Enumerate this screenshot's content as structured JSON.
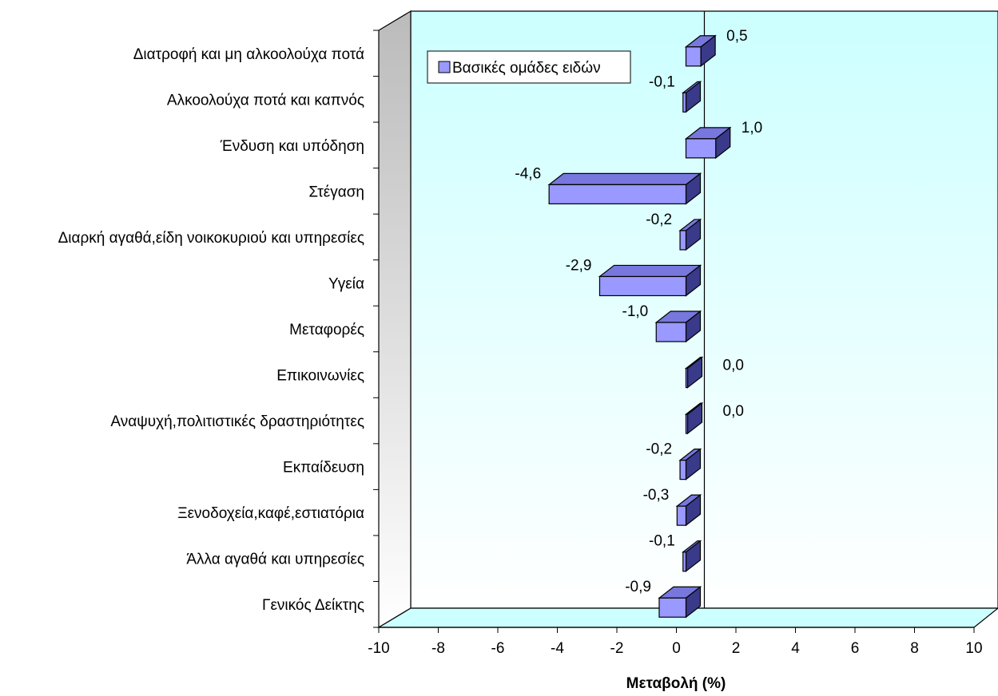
{
  "chart_data": {
    "type": "bar",
    "orientation": "horizontal",
    "style": "3d",
    "categories": [
      "Διατροφή και μη αλκοολούχα ποτά",
      "Αλκοολούχα ποτά και καπνός",
      "Ένδυση και υπόδηση",
      "Στέγαση",
      "Διαρκή αγαθά,είδη νοικοκυριού και υπηρεσίες",
      "Υγεία",
      "Μεταφορές",
      "Επικοινωνίες",
      "Αναψυχή,πολιτιστικές δραστηριότητες",
      "Εκπαίδευση",
      "Ξενοδοχεία,καφέ,εστιατόρια",
      "Άλλα αγαθά και υπηρεσίες",
      "Γενικός Δείκτης"
    ],
    "series": [
      {
        "name": "Βασικές ομάδες ειδών",
        "values": [
          0.5,
          -0.1,
          1.0,
          -4.6,
          -0.2,
          -2.9,
          -1.0,
          0.0,
          0.0,
          -0.2,
          -0.3,
          -0.1,
          -0.9
        ],
        "labels": [
          "0,5",
          "-0,1",
          "1,0",
          "-4,6",
          "-0,2",
          "-2,9",
          "-1,0",
          "0,0",
          "0,0",
          "-0,2",
          "-0,3",
          "-0,1",
          "-0,9"
        ],
        "color": "#9999ff"
      }
    ],
    "xlabel": "Μεταβολή (%)",
    "xlim": [
      -10,
      10
    ],
    "xticks": [
      -10,
      -8,
      -6,
      -4,
      -2,
      0,
      2,
      4,
      6,
      8,
      10
    ],
    "xtick_labels": [
      "-10",
      "-8",
      "-6",
      "-4",
      "-2",
      "0",
      "2",
      "4",
      "6",
      "8",
      "10"
    ],
    "legend_position": "top-left",
    "colors": {
      "bar_front": "#9999ff",
      "bar_side": "#3a3a8a",
      "bar_top": "#7777dd",
      "back_wall_top": "#ccffff",
      "back_wall_bottom": "#ffffff",
      "floor": "#ccffff",
      "side_wall_top": "#bbbbbb",
      "side_wall_bottom": "#ffffff"
    }
  }
}
